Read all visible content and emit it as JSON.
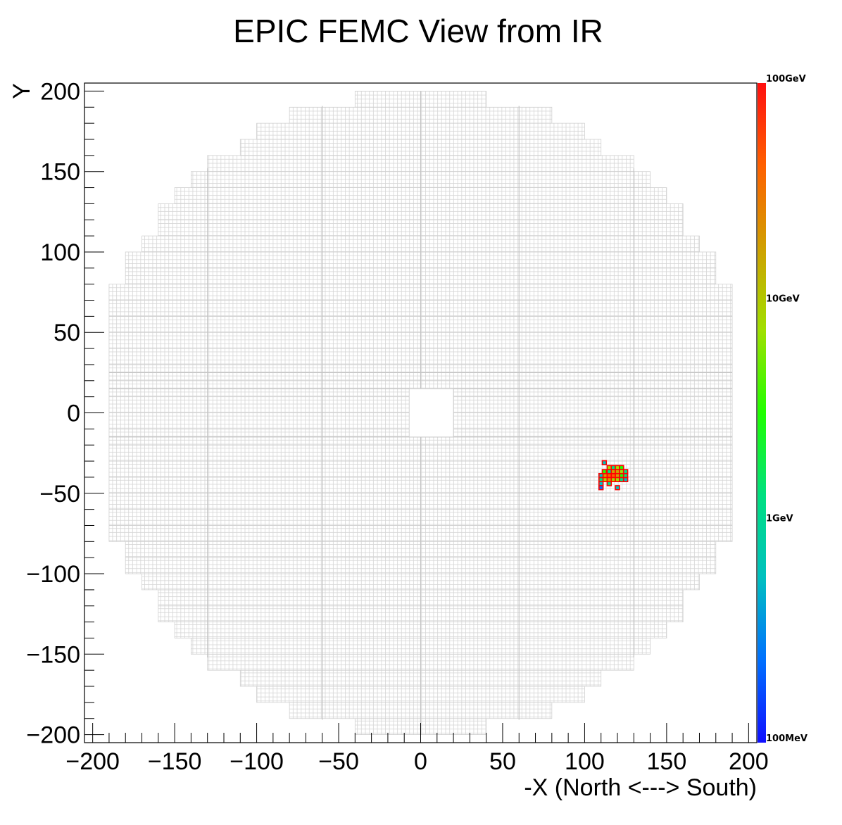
{
  "chart_data": {
    "type": "heatmap",
    "title": "EPIC FEMC View from IR",
    "xlabel": "-X (North <---> South)",
    "ylabel": "Y",
    "xlim": [
      -205,
      205
    ],
    "ylim": [
      -205,
      205
    ],
    "x_major_ticks": [
      -200,
      -150,
      -100,
      -50,
      0,
      50,
      100,
      150,
      200
    ],
    "y_major_ticks": [
      -200,
      -150,
      -100,
      -50,
      0,
      50,
      100,
      150,
      200
    ],
    "x_tick_labels": [
      "−200",
      "−150",
      "−100",
      "−50",
      "0",
      "50",
      "100",
      "150",
      "200"
    ],
    "y_tick_labels": [
      "−200",
      "−150",
      "−100",
      "−50",
      "0",
      "50",
      "100",
      "150",
      "200"
    ],
    "grid": false,
    "detector": {
      "outer_radius": 200,
      "beam_hole": {
        "x": [
          -7,
          20
        ],
        "y": [
          -15,
          15
        ]
      },
      "cell_size": 2.5
    },
    "colorbar": {
      "scale": "log",
      "range_gev": [
        0.1,
        100
      ],
      "labels": [
        {
          "text": "100GeV",
          "value": 100
        },
        {
          "text": "10GeV",
          "value": 10
        },
        {
          "text": "1GeV",
          "value": 1
        },
        {
          "text": "100MeV",
          "value": 0.1
        }
      ],
      "colors": [
        "#1010ff",
        "#0070ff",
        "#00c0c0",
        "#00e080",
        "#20ff00",
        "#a0e000",
        "#d0a000",
        "#ff6000",
        "#ff1010"
      ]
    },
    "hits": [
      {
        "x": 112,
        "y": -31,
        "e": 0.5
      },
      {
        "x": 115,
        "y": -34,
        "e": 5
      },
      {
        "x": 117.5,
        "y": -34,
        "e": 2
      },
      {
        "x": 120,
        "y": -34,
        "e": 8
      },
      {
        "x": 122.5,
        "y": -34,
        "e": 3
      },
      {
        "x": 112,
        "y": -36.5,
        "e": 4
      },
      {
        "x": 115,
        "y": -36.5,
        "e": 2
      },
      {
        "x": 117.5,
        "y": -36.5,
        "e": 12
      },
      {
        "x": 120,
        "y": -36.5,
        "e": 15
      },
      {
        "x": 122.5,
        "y": -36.5,
        "e": 6
      },
      {
        "x": 125,
        "y": -36.5,
        "e": 1.5
      },
      {
        "x": 110,
        "y": -39,
        "e": 0.8
      },
      {
        "x": 112.5,
        "y": -39,
        "e": 20
      },
      {
        "x": 115,
        "y": -39,
        "e": 40
      },
      {
        "x": 117.5,
        "y": -39,
        "e": 60
      },
      {
        "x": 120,
        "y": -39,
        "e": 25
      },
      {
        "x": 122.5,
        "y": -39,
        "e": 4
      },
      {
        "x": 125,
        "y": -39,
        "e": 1
      },
      {
        "x": 110,
        "y": -41.5,
        "e": 2
      },
      {
        "x": 112.5,
        "y": -41.5,
        "e": 7
      },
      {
        "x": 115,
        "y": -41.5,
        "e": 18
      },
      {
        "x": 117.5,
        "y": -41.5,
        "e": 9
      },
      {
        "x": 120,
        "y": -41.5,
        "e": 5
      },
      {
        "x": 122.5,
        "y": -41.5,
        "e": 1.2
      },
      {
        "x": 125,
        "y": -41.5,
        "e": 0.6
      },
      {
        "x": 110,
        "y": -44,
        "e": 0.4
      },
      {
        "x": 115,
        "y": -44,
        "e": 0.9
      },
      {
        "x": 110,
        "y": -46.5,
        "e": 0.3
      },
      {
        "x": 120,
        "y": -46.5,
        "e": 0.5
      }
    ]
  }
}
